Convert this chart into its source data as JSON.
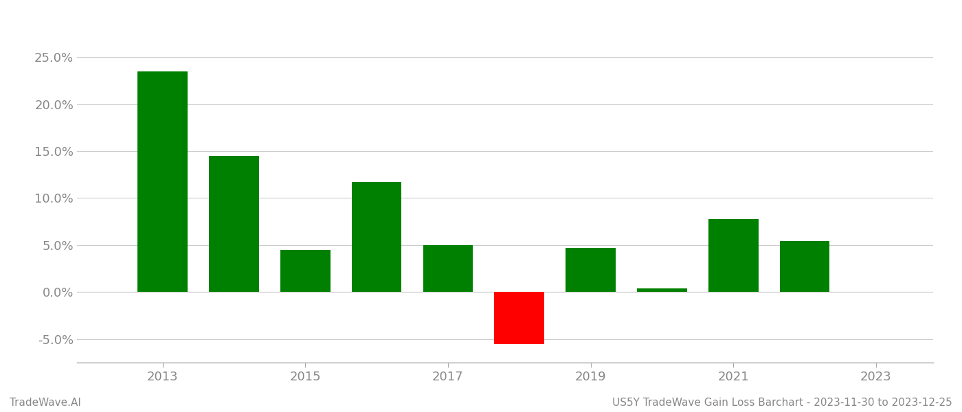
{
  "years": [
    2013,
    2014,
    2015,
    2016,
    2017,
    2018,
    2019,
    2020,
    2021,
    2022
  ],
  "values": [
    0.235,
    0.145,
    0.045,
    0.117,
    0.05,
    -0.055,
    0.047,
    0.004,
    0.078,
    0.054
  ],
  "bar_colors": [
    "#008000",
    "#008000",
    "#008000",
    "#008000",
    "#008000",
    "#ff0000",
    "#008000",
    "#008000",
    "#008000",
    "#008000"
  ],
  "ylim": [
    -0.075,
    0.28
  ],
  "yticks": [
    -0.05,
    0.0,
    0.05,
    0.1,
    0.15,
    0.2,
    0.25
  ],
  "xtick_labels": [
    "2013",
    "2015",
    "2017",
    "2019",
    "2021",
    "2023"
  ],
  "xtick_positions": [
    2013,
    2015,
    2017,
    2019,
    2021,
    2023
  ],
  "xlim": [
    2011.8,
    2023.8
  ],
  "background_color": "#ffffff",
  "grid_color": "#cccccc",
  "bar_width": 0.7,
  "footer_left": "TradeWave.AI",
  "footer_right": "US5Y TradeWave Gain Loss Barchart - 2023-11-30 to 2023-12-25",
  "tick_label_color": "#888888",
  "footer_color": "#888888",
  "tick_fontsize": 13,
  "footer_fontsize": 11
}
